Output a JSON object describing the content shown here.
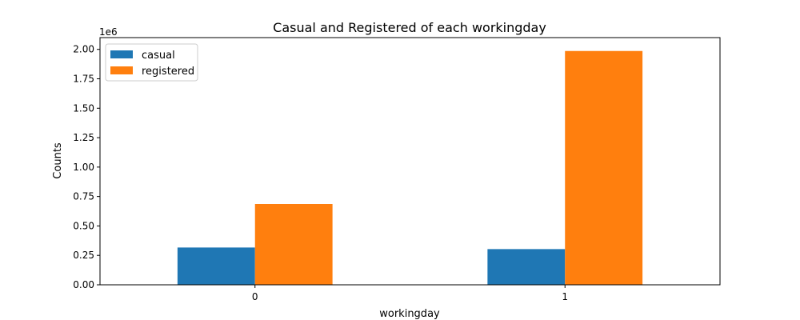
{
  "chart_data": {
    "type": "bar",
    "title": "Casual and Registered of each workingday",
    "xlabel": "workingday",
    "ylabel": "Counts",
    "y_offset_label": "1e6",
    "categories": [
      "0",
      "1"
    ],
    "series": [
      {
        "name": "casual",
        "color": "#1f77b4",
        "values": [
          316732,
          303285
        ]
      },
      {
        "name": "registered",
        "color": "#ff7f0e",
        "values": [
          686410,
          1986260
        ]
      }
    ],
    "ylim": [
      0,
      2100000
    ],
    "yticks": [
      {
        "value": 0,
        "label": "0.00"
      },
      {
        "value": 250000,
        "label": "0.25"
      },
      {
        "value": 500000,
        "label": "0.50"
      },
      {
        "value": 750000,
        "label": "0.75"
      },
      {
        "value": 1000000,
        "label": "1.00"
      },
      {
        "value": 1250000,
        "label": "1.25"
      },
      {
        "value": 1500000,
        "label": "1.50"
      },
      {
        "value": 1750000,
        "label": "1.75"
      },
      {
        "value": 2000000,
        "label": "2.00"
      }
    ],
    "grid": false,
    "legend_position": "top-left"
  }
}
